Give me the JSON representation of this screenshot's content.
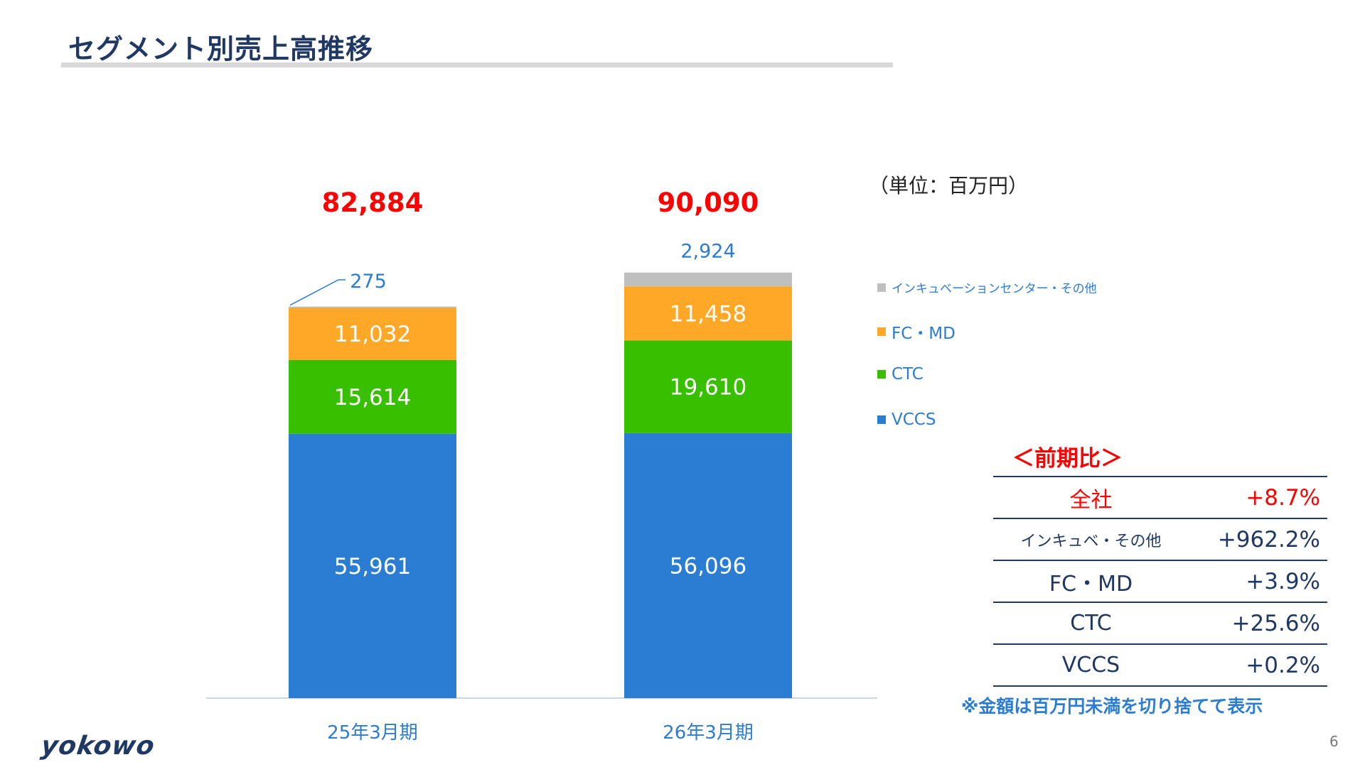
{
  "page": {
    "title": "セグメント別売上高推移",
    "unit": "（単位：百万円）",
    "note": "※金額は百万円未満を切り捨てて表示",
    "logo": "yokowo",
    "page_number": "6"
  },
  "chart_data": {
    "type": "bar",
    "stacked": true,
    "categories": [
      "25年3月期",
      "26年3月期"
    ],
    "totals": [
      "82,884",
      "90,090"
    ],
    "ylim": [
      0,
      92000
    ],
    "series": [
      {
        "name": "VCCS",
        "color": "#2b7cd3",
        "values": [
          55961,
          56096
        ],
        "labels": [
          "55,961",
          "56,096"
        ]
      },
      {
        "name": "CTC",
        "color": "#38bf00",
        "values": [
          15614,
          19610
        ],
        "labels": [
          "15,614",
          "19,610"
        ]
      },
      {
        "name": "FC・MD",
        "color": "#ffa726",
        "values": [
          11032,
          11458
        ],
        "labels": [
          "11,032",
          "11,458"
        ]
      },
      {
        "name": "インキュベーションセンター・その他",
        "color": "#bfbfbf",
        "values": [
          275,
          2924
        ],
        "labels": [
          "275",
          "2,924"
        ]
      }
    ],
    "legend_position": "right",
    "grid": false
  },
  "legend": [
    {
      "label": "インキュベーションセンター・その他",
      "color": "#bfbfbf"
    },
    {
      "label": "FC・MD",
      "color": "#ffa726"
    },
    {
      "label": "CTC",
      "color": "#38bf00"
    },
    {
      "label": "VCCS",
      "color": "#2b7cd3"
    }
  ],
  "comparison": {
    "title": "＜前期比＞",
    "rows": [
      {
        "name": "全社",
        "value": "+8.7%"
      },
      {
        "name": "インキュベ・その他",
        "value": "+962.2%"
      },
      {
        "name": "FC・MD",
        "value": "+3.9%"
      },
      {
        "name": "CTC",
        "value": "+25.6%"
      },
      {
        "name": "VCCS",
        "value": "+0.2%"
      }
    ]
  }
}
